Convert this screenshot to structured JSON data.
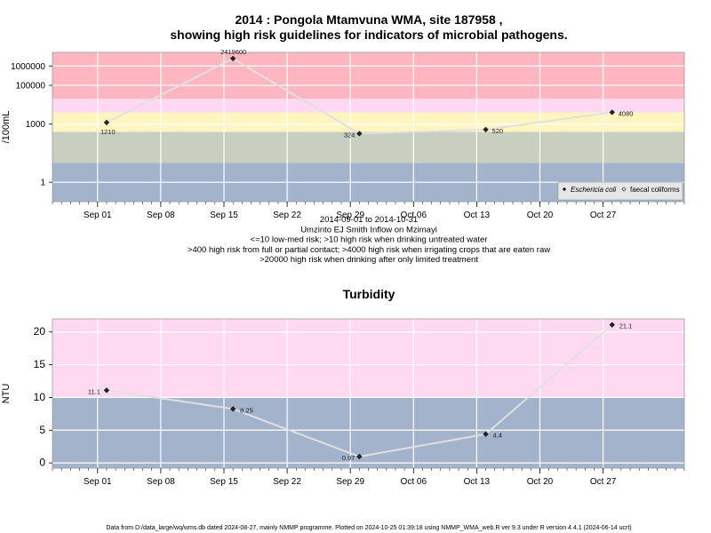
{
  "page": {
    "title_line1": "2014 : Pongola Mtamvuna WMA, site 187958 ,",
    "title_line2": "showing high risk guidelines for indicators of microbial pathogens.",
    "footer": "Data from D:/data_large/wq/wms.db dated 2024-08-27, mainly NMMP programme. Plotted on 2024-10-25 01:39:18 using NMMP_WMA_web.R ver 9.3 under R version 4.4.1 (2024-06-14 ucrt)"
  },
  "colors": {
    "band_red": "#ffb6c1",
    "band_pink": "#ffd9f2",
    "band_yellow": "#fff5c0",
    "band_grey": "#c9cfc0",
    "band_blue": "#a3b3cc",
    "line": "#e0e0e0",
    "marker": "#222222"
  },
  "chart_data": [
    {
      "type": "line",
      "title": "",
      "xlabel": "",
      "ylabel": "/100mL",
      "y_scale": "log",
      "ylim": [
        0.1,
        5000000
      ],
      "xlim": [
        "2014-08-27",
        "2014-11-05"
      ],
      "x_ticks": [
        "Sep 01",
        "Sep 08",
        "Sep 15",
        "Sep 22",
        "Sep 29",
        "Oct 06",
        "Oct 13",
        "Oct 20",
        "Oct 27"
      ],
      "x_tick_dates": [
        "2014-09-01",
        "2014-09-08",
        "2014-09-15",
        "2014-09-22",
        "2014-09-29",
        "2014-10-06",
        "2014-10-13",
        "2014-10-20",
        "2014-10-27"
      ],
      "y_ticks": [
        1,
        1000,
        100000,
        1000000
      ],
      "y_tick_labels": [
        "1",
        "1000",
        "100000",
        "1000000"
      ],
      "grid": true,
      "bands": [
        {
          "from": 0.1,
          "to": 10,
          "color": "#a3b3cc"
        },
        {
          "from": 10,
          "to": 400,
          "color": "#c9cfc0"
        },
        {
          "from": 400,
          "to": 4000,
          "color": "#fff5c0"
        },
        {
          "from": 4000,
          "to": 20000,
          "color": "#ffd9f2"
        },
        {
          "from": 20000,
          "to": 5000000,
          "color": "#ffb6c1"
        }
      ],
      "series": [
        {
          "name": "Eschericia coli",
          "x": [
            "2014-09-02",
            "2014-09-16",
            "2014-09-30",
            "2014-10-14",
            "2014-10-28"
          ],
          "values": [
            1210,
            2419600,
            324,
            520,
            4080
          ],
          "labels": [
            "1210",
            "2419600",
            "324",
            "520",
            "4080"
          ]
        }
      ],
      "legend": {
        "position": "bottom-right",
        "entries": [
          "Eschericia coli",
          "faecal coliforms"
        ]
      },
      "notes": [
        "2014-09-01 to 2014-10-31",
        "Umzinto EJ Smith Inflow on Mzimayi",
        "<=10 low-med risk; >10 high risk when drinking untreated water",
        ">400 high risk from full or partial contact; >4000 high risk when irrigating crops that are eaten raw",
        ">20000 high risk when drinking after only limited treatment"
      ]
    },
    {
      "type": "line",
      "title": "Turbidity",
      "xlabel": "",
      "ylabel": "NTU",
      "ylim": [
        -0.8,
        22
      ],
      "xlim": [
        "2014-08-27",
        "2014-11-05"
      ],
      "x_ticks": [
        "Sep 01",
        "Sep 08",
        "Sep 15",
        "Sep 22",
        "Sep 29",
        "Oct 06",
        "Oct 13",
        "Oct 20",
        "Oct 27"
      ],
      "x_tick_dates": [
        "2014-09-01",
        "2014-09-08",
        "2014-09-15",
        "2014-09-22",
        "2014-09-29",
        "2014-10-06",
        "2014-10-13",
        "2014-10-20",
        "2014-10-27"
      ],
      "y_ticks": [
        0,
        5,
        10,
        15,
        20
      ],
      "y_tick_labels": [
        "0",
        "5",
        "10",
        "15",
        "20"
      ],
      "grid": true,
      "bands": [
        {
          "from": -0.8,
          "to": 10,
          "color": "#a3b3cc"
        },
        {
          "from": 10,
          "to": 22,
          "color": "#ffd9f2"
        }
      ],
      "series": [
        {
          "x": [
            "2014-09-02",
            "2014-09-16",
            "2014-09-30",
            "2014-10-14",
            "2014-10-28"
          ],
          "values": [
            11.1,
            8.25,
            0.97,
            4.4,
            21.1
          ],
          "labels": [
            "11.1",
            "8.25",
            "0.97",
            "4.4",
            "21.1"
          ]
        }
      ]
    }
  ]
}
